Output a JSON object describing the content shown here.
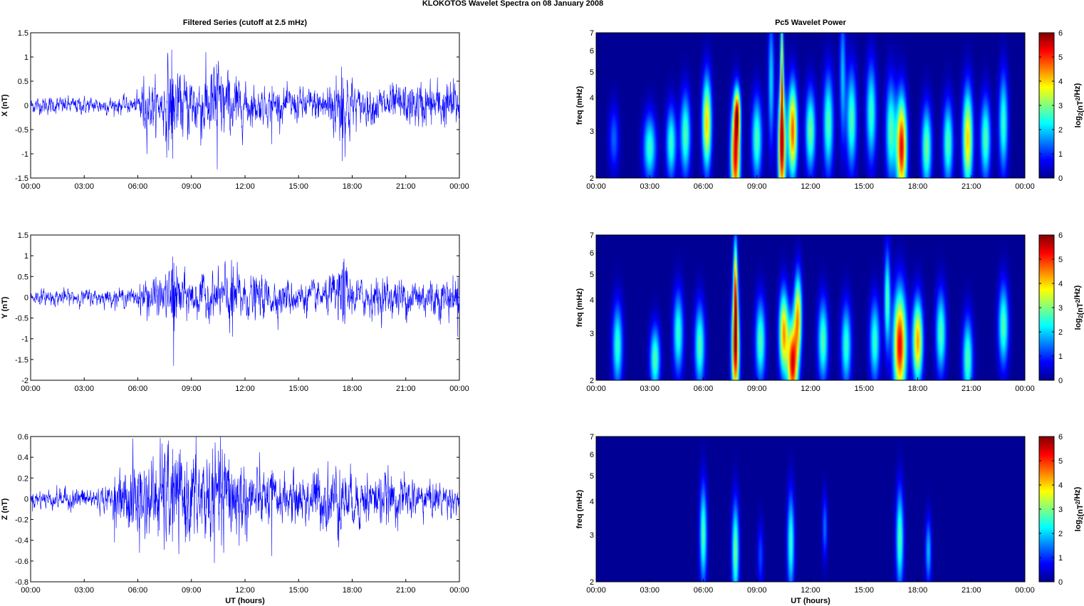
{
  "figure_title": "KLOKOTOS Wavelet Spectra on 08 January   2008",
  "left_title": "Filtered Series (cutoff at 2.5 mHz)",
  "right_title": "Pc5 Wavelet Power",
  "x_axis_label": "UT (hours)",
  "colorbar_label": {
    "base": "log",
    "sub": "2",
    "mid": "(nT",
    "sup": "2",
    "end": "/Hz)"
  },
  "chart_data": [
    {
      "type": "line",
      "panel": "X",
      "ylabel": "X (nT)",
      "color": "#0000ff",
      "xlim": [
        0,
        24
      ],
      "ylim": [
        -1.5,
        1.5
      ],
      "x_ticks": [
        "00:00",
        "03:00",
        "06:00",
        "09:00",
        "12:00",
        "15:00",
        "18:00",
        "21:00",
        "00:00"
      ],
      "y_ticks": [
        "-1.5",
        "-1",
        "-0.5",
        "0",
        "0.5",
        "1",
        "1.5"
      ],
      "base_amplitude": 0.1,
      "envelope": [
        [
          0,
          0.1
        ],
        [
          5.9,
          0.1
        ],
        [
          6.3,
          0.35
        ],
        [
          7.3,
          0.25
        ],
        [
          7.8,
          0.6
        ],
        [
          8.3,
          0.35
        ],
        [
          10.5,
          0.5
        ],
        [
          11.5,
          0.3
        ],
        [
          13,
          0.2
        ],
        [
          16,
          0.2
        ],
        [
          17.3,
          0.45
        ],
        [
          17.8,
          0.45
        ],
        [
          18.3,
          0.2
        ],
        [
          21,
          0.25
        ],
        [
          23.8,
          0.3
        ],
        [
          24,
          0.2
        ]
      ],
      "spikes": [
        [
          7.9,
          1.15
        ],
        [
          7.95,
          -1.1
        ],
        [
          10.4,
          0.85
        ],
        [
          10.45,
          -1.32
        ],
        [
          17.4,
          0.8
        ],
        [
          17.45,
          -1.15
        ],
        [
          11.5,
          0.6
        ],
        [
          13.5,
          -0.8
        ]
      ]
    },
    {
      "type": "line",
      "panel": "Y",
      "ylabel": "Y (nT)",
      "color": "#0000ff",
      "xlim": [
        0,
        24
      ],
      "ylim": [
        -2,
        1.5
      ],
      "x_ticks": [
        "00:00",
        "03:00",
        "06:00",
        "09:00",
        "12:00",
        "15:00",
        "18:00",
        "21:00",
        "00:00"
      ],
      "y_ticks": [
        "-2",
        "-1.5",
        "-1",
        "-0.5",
        "0",
        "0.5",
        "1",
        "1.5"
      ],
      "base_amplitude": 0.1,
      "envelope": [
        [
          0,
          0.1
        ],
        [
          5.9,
          0.12
        ],
        [
          6.5,
          0.3
        ],
        [
          7.5,
          0.25
        ],
        [
          8,
          0.55
        ],
        [
          8.6,
          0.3
        ],
        [
          10.5,
          0.3
        ],
        [
          11.2,
          0.5
        ],
        [
          12,
          0.3
        ],
        [
          16.5,
          0.2
        ],
        [
          17.5,
          0.5
        ],
        [
          18,
          0.25
        ],
        [
          23.8,
          0.3
        ],
        [
          24,
          0.2
        ]
      ],
      "spikes": [
        [
          7.95,
          0.98
        ],
        [
          8.0,
          -1.65
        ],
        [
          11.25,
          0.9
        ],
        [
          11.3,
          -0.95
        ],
        [
          17.5,
          0.85
        ],
        [
          23.9,
          -0.95
        ]
      ]
    },
    {
      "type": "line",
      "panel": "Z",
      "ylabel": "Z (nT)",
      "color": "#0000ff",
      "xlim": [
        0,
        24
      ],
      "ylim": [
        -0.8,
        0.6
      ],
      "x_ticks": [
        "00:00",
        "03:00",
        "06:00",
        "09:00",
        "12:00",
        "15:00",
        "18:00",
        "21:00",
        "00:00"
      ],
      "y_ticks": [
        "-0.8",
        "-0.6",
        "-0.4",
        "-0.2",
        "0",
        "0.2",
        "0.4",
        "0.6"
      ],
      "xlabel": "UT (hours)",
      "base_amplitude": 0.05,
      "envelope": [
        [
          0,
          0.05
        ],
        [
          4.5,
          0.07
        ],
        [
          5.8,
          0.25
        ],
        [
          6.5,
          0.2
        ],
        [
          7.5,
          0.3
        ],
        [
          8.2,
          0.25
        ],
        [
          11.2,
          0.3
        ],
        [
          12,
          0.2
        ],
        [
          14,
          0.12
        ],
        [
          17.2,
          0.2
        ],
        [
          17.8,
          0.15
        ],
        [
          19,
          0.15
        ],
        [
          23.9,
          0.08
        ],
        [
          24,
          0.05
        ]
      ],
      "spikes": [
        [
          7.95,
          0.48
        ],
        [
          6.1,
          -0.52
        ],
        [
          11.1,
          0.38
        ],
        [
          10.8,
          -0.52
        ],
        [
          13.5,
          -0.55
        ],
        [
          4.7,
          -0.42
        ],
        [
          17.3,
          0.28
        ]
      ]
    },
    {
      "type": "heatmap",
      "panel": "X",
      "ylabel": "freq (mHz)",
      "y_scale": "log",
      "ylim": [
        2,
        7
      ],
      "y_ticks": [
        2,
        3,
        4,
        5,
        6,
        7
      ],
      "xlim": [
        0,
        24
      ],
      "x_ticks": [
        "00:00",
        "03:00",
        "06:00",
        "09:00",
        "12:00",
        "15:00",
        "18:00",
        "21:00",
        "00:00"
      ],
      "zlim": [
        0,
        6
      ],
      "colorbar_ticks": [
        0,
        1,
        2,
        3,
        4,
        5,
        6
      ],
      "blobs": [
        [
          1.0,
          2.8,
          0.2,
          0.2,
          1.4
        ],
        [
          3.0,
          2.6,
          0.25,
          0.2,
          2.8
        ],
        [
          4.2,
          2.7,
          0.2,
          0.22,
          2.8
        ],
        [
          5.0,
          2.9,
          0.2,
          0.25,
          3.0
        ],
        [
          6.2,
          3.2,
          0.18,
          0.28,
          4.5
        ],
        [
          7.8,
          2.4,
          0.18,
          0.3,
          6.0
        ],
        [
          7.9,
          3.5,
          0.12,
          0.15,
          4.5
        ],
        [
          9.0,
          2.8,
          0.2,
          0.25,
          3.0
        ],
        [
          10.4,
          2.6,
          0.15,
          0.35,
          6.0
        ],
        [
          10.4,
          5.0,
          0.06,
          0.4,
          4.0
        ],
        [
          11.0,
          3.0,
          0.18,
          0.28,
          5.3
        ],
        [
          12.0,
          3.0,
          0.2,
          0.25,
          3.2
        ],
        [
          13.0,
          3.2,
          0.2,
          0.3,
          3.0
        ],
        [
          14.3,
          3.3,
          0.2,
          0.3,
          3.0
        ],
        [
          15.4,
          3.5,
          0.2,
          0.3,
          2.8
        ],
        [
          16.5,
          3.0,
          0.2,
          0.3,
          3.0
        ],
        [
          17.1,
          2.6,
          0.2,
          0.3,
          6.0
        ],
        [
          18.5,
          2.6,
          0.2,
          0.25,
          3.2
        ],
        [
          19.7,
          2.7,
          0.2,
          0.25,
          3.0
        ],
        [
          20.8,
          2.8,
          0.2,
          0.3,
          4.5
        ],
        [
          21.8,
          2.8,
          0.2,
          0.25,
          3.0
        ],
        [
          22.8,
          3.2,
          0.18,
          0.3,
          2.8
        ],
        [
          9.8,
          4.6,
          0.12,
          0.4,
          2.2
        ],
        [
          13.8,
          4.8,
          0.12,
          0.4,
          2.0
        ]
      ]
    },
    {
      "type": "heatmap",
      "panel": "Y",
      "ylabel": "freq (mHz)",
      "y_scale": "log",
      "ylim": [
        2,
        7
      ],
      "y_ticks": [
        2,
        3,
        4,
        5,
        6,
        7
      ],
      "xlim": [
        0,
        24
      ],
      "x_ticks": [
        "00:00",
        "03:00",
        "06:00",
        "09:00",
        "12:00",
        "15:00",
        "18:00",
        "21:00",
        "00:00"
      ],
      "zlim": [
        0,
        6
      ],
      "colorbar_ticks": [
        0,
        1,
        2,
        3,
        4,
        5,
        6
      ],
      "blobs": [
        [
          1.2,
          2.7,
          0.2,
          0.25,
          2.8
        ],
        [
          3.3,
          2.4,
          0.2,
          0.2,
          3.0
        ],
        [
          4.6,
          3.0,
          0.2,
          0.25,
          2.8
        ],
        [
          5.8,
          2.7,
          0.2,
          0.25,
          3.0
        ],
        [
          7.8,
          2.6,
          0.15,
          0.32,
          6.0
        ],
        [
          7.8,
          4.5,
          0.08,
          0.3,
          4.5
        ],
        [
          9.2,
          2.8,
          0.2,
          0.25,
          3.0
        ],
        [
          10.5,
          3.0,
          0.18,
          0.25,
          4.8
        ],
        [
          11.0,
          2.3,
          0.2,
          0.25,
          6.0
        ],
        [
          11.3,
          3.5,
          0.15,
          0.25,
          4.5
        ],
        [
          12.7,
          2.8,
          0.2,
          0.25,
          3.0
        ],
        [
          14.0,
          2.7,
          0.2,
          0.25,
          2.8
        ],
        [
          15.6,
          2.8,
          0.2,
          0.25,
          2.8
        ],
        [
          17.0,
          2.7,
          0.25,
          0.32,
          6.0
        ],
        [
          18.0,
          2.8,
          0.2,
          0.25,
          4.8
        ],
        [
          19.3,
          3.0,
          0.2,
          0.25,
          3.0
        ],
        [
          20.8,
          2.4,
          0.2,
          0.25,
          3.0
        ],
        [
          22.8,
          3.2,
          0.2,
          0.25,
          3.0
        ],
        [
          16.3,
          4.0,
          0.12,
          0.3,
          3.0
        ]
      ]
    },
    {
      "type": "heatmap",
      "panel": "Z",
      "ylabel": "freq (mHz)",
      "y_scale": "log",
      "ylim": [
        2,
        7
      ],
      "y_ticks": [
        2,
        3,
        4,
        5,
        6,
        7
      ],
      "xlim": [
        0,
        24
      ],
      "x_ticks": [
        "00:00",
        "03:00",
        "06:00",
        "09:00",
        "12:00",
        "15:00",
        "18:00",
        "21:00",
        "00:00"
      ],
      "xlabel": "UT (hours)",
      "zlim": [
        0,
        6
      ],
      "colorbar_ticks": [
        0,
        1,
        2,
        3,
        4,
        5,
        6
      ],
      "blobs": [
        [
          6.0,
          3.0,
          0.14,
          0.3,
          3.0
        ],
        [
          7.8,
          2.6,
          0.14,
          0.3,
          3.2
        ],
        [
          9.2,
          2.5,
          0.12,
          0.2,
          1.2
        ],
        [
          10.9,
          2.8,
          0.14,
          0.3,
          2.8
        ],
        [
          12.8,
          3.2,
          0.1,
          0.2,
          1.5
        ],
        [
          17.0,
          2.9,
          0.15,
          0.3,
          3.0
        ],
        [
          18.6,
          2.6,
          0.12,
          0.2,
          2.0
        ]
      ]
    }
  ]
}
